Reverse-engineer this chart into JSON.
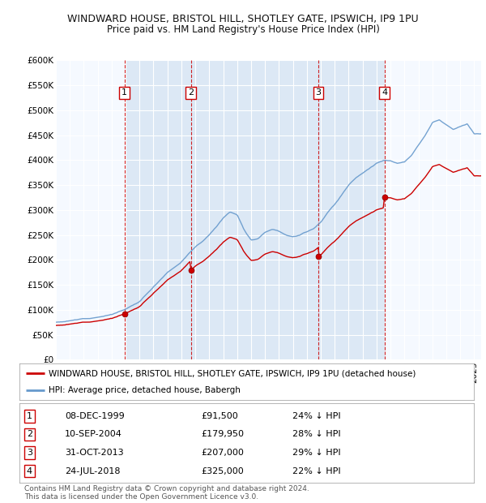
{
  "title": "WINDWARD HOUSE, BRISTOL HILL, SHOTLEY GATE, IPSWICH, IP9 1PU",
  "subtitle": "Price paid vs. HM Land Registry's House Price Index (HPI)",
  "ylim": [
    0,
    600000
  ],
  "yticks": [
    0,
    50000,
    100000,
    150000,
    200000,
    250000,
    300000,
    350000,
    400000,
    450000,
    500000,
    550000,
    600000
  ],
  "xlim_start": 1995.0,
  "xlim_end": 2025.5,
  "background_color": "#ffffff",
  "plot_bg_color": "#dce8f5",
  "grid_color": "#ffffff",
  "hpi_color": "#6699cc",
  "price_color": "#cc0000",
  "dashed_line_color": "#cc0000",
  "band_color": "#dce8f5",
  "legend_label_price": "WINDWARD HOUSE, BRISTOL HILL, SHOTLEY GATE, IPSWICH, IP9 1PU (detached house)",
  "legend_label_hpi": "HPI: Average price, detached house, Babergh",
  "sales": [
    {
      "num": 1,
      "date_label": "08-DEC-1999",
      "year": 1999.92,
      "price": 91500,
      "pct": "24% ↓ HPI"
    },
    {
      "num": 2,
      "date_label": "10-SEP-2004",
      "year": 2004.69,
      "price": 179950,
      "pct": "28% ↓ HPI"
    },
    {
      "num": 3,
      "date_label": "31-OCT-2013",
      "year": 2013.83,
      "price": 207000,
      "pct": "29% ↓ HPI"
    },
    {
      "num": 4,
      "date_label": "24-JUL-2018",
      "year": 2018.56,
      "price": 325000,
      "pct": "22% ↓ HPI"
    }
  ],
  "footer": "Contains HM Land Registry data © Crown copyright and database right 2024.\nThis data is licensed under the Open Government Licence v3.0.",
  "title_fontsize": 9,
  "subtitle_fontsize": 8.5,
  "tick_fontsize": 7.5,
  "legend_fontsize": 7.5,
  "footer_fontsize": 6.5,
  "hpi_waypoints": {
    "1995.0": 75000,
    "1996.0": 78000,
    "1997.0": 82000,
    "1998.0": 87000,
    "1999.0": 93000,
    "2000.0": 103000,
    "2001.0": 118000,
    "2002.0": 148000,
    "2003.0": 178000,
    "2004.0": 200000,
    "2004.5": 215000,
    "2005.0": 230000,
    "2005.5": 240000,
    "2006.0": 255000,
    "2006.5": 270000,
    "2007.0": 288000,
    "2007.5": 300000,
    "2008.0": 295000,
    "2008.5": 265000,
    "2009.0": 245000,
    "2009.5": 248000,
    "2010.0": 262000,
    "2010.5": 268000,
    "2011.0": 265000,
    "2011.5": 258000,
    "2012.0": 255000,
    "2012.5": 258000,
    "2013.0": 265000,
    "2013.5": 272000,
    "2014.0": 285000,
    "2014.5": 305000,
    "2015.0": 320000,
    "2015.5": 340000,
    "2016.0": 360000,
    "2016.5": 375000,
    "2017.0": 385000,
    "2017.5": 395000,
    "2018.0": 405000,
    "2018.5": 410000,
    "2019.0": 410000,
    "2019.5": 405000,
    "2020.0": 408000,
    "2020.5": 420000,
    "2021.0": 440000,
    "2021.5": 460000,
    "2022.0": 485000,
    "2022.5": 490000,
    "2023.0": 480000,
    "2023.5": 470000,
    "2024.0": 475000,
    "2024.5": 480000,
    "2025.0": 460000,
    "2025.5": 460000
  }
}
